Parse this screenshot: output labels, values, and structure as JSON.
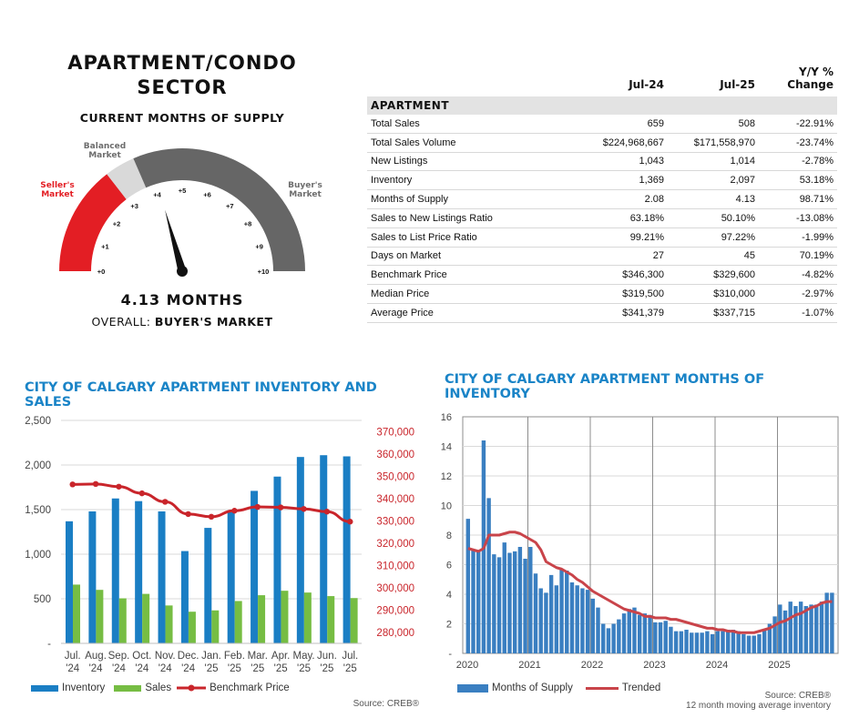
{
  "gauge": {
    "title_line1": "APARTMENT/CONDO",
    "title_line2": "SECTOR",
    "subtitle": "CURRENT MONTHS OF SUPPLY",
    "value_text": "4.13 MONTHS",
    "overall_label": "OVERALL:",
    "overall_value": "BUYER'S MARKET",
    "value": 4.13,
    "sellers_label": "Seller's Market",
    "balanced_label": "Balanced Market",
    "buyers_label": "Buyer's Market",
    "ticks": [
      "+0",
      "+1",
      "+2",
      "+3",
      "+4",
      "+5",
      "+6",
      "+7",
      "+8",
      "+9",
      "+10"
    ],
    "colors": {
      "sellers": "#e31e24",
      "balanced": "#d9d9d9",
      "buyers": "#666666",
      "sellers_text": "#e31e24",
      "label_text": "#6d6d6d"
    }
  },
  "table": {
    "col_jul24": "Jul-24",
    "col_jul25": "Jul-25",
    "col_change_line1": "Y/Y %",
    "col_change_line2": "Change",
    "section": "APARTMENT",
    "rows": [
      {
        "label": "Total Sales",
        "jul24": "659",
        "jul25": "508",
        "change": "-22.91%"
      },
      {
        "label": "Total Sales Volume",
        "jul24": "$224,968,667",
        "jul25": "$171,558,970",
        "change": "-23.74%"
      },
      {
        "label": "New Listings",
        "jul24": "1,043",
        "jul25": "1,014",
        "change": "-2.78%"
      },
      {
        "label": "Inventory",
        "jul24": "1,369",
        "jul25": "2,097",
        "change": "53.18%"
      },
      {
        "label": "Months of Supply",
        "jul24": "2.08",
        "jul25": "4.13",
        "change": "98.71%"
      },
      {
        "label": "Sales to New Listings Ratio",
        "jul24": "63.18%",
        "jul25": "50.10%",
        "change": "-13.08%"
      },
      {
        "label": "Sales to List Price Ratio",
        "jul24": "99.21%",
        "jul25": "97.22%",
        "change": "-1.99%"
      },
      {
        "label": "Days on Market",
        "jul24": "27",
        "jul25": "45",
        "change": "70.19%"
      },
      {
        "label": "Benchmark Price",
        "jul24": "$346,300",
        "jul25": "$329,600",
        "change": "-4.82%"
      },
      {
        "label": "Median Price",
        "jul24": "$319,500",
        "jul25": "$310,000",
        "change": "-2.97%"
      },
      {
        "label": "Average Price",
        "jul24": "$341,379",
        "jul25": "$337,715",
        "change": "-1.07%"
      }
    ]
  },
  "chart_data": [
    {
      "type": "bar",
      "title": "CITY OF CALGARY APARTMENT INVENTORY AND SALES",
      "categories": [
        "Jul.\n'24",
        "Aug.\n'24",
        "Sep.\n'24",
        "Oct.\n'24",
        "Nov.\n'24",
        "Dec.\n'24",
        "Jan.\n'25",
        "Feb.\n'25",
        "Mar.\n'25",
        "Apr.\n'25",
        "May.\n'25",
        "Jun.\n'25",
        "Jul.\n'25"
      ],
      "series": [
        {
          "name": "Inventory",
          "axis": "left",
          "color": "#1a7ec4",
          "values": [
            1369,
            1480,
            1625,
            1595,
            1480,
            1035,
            1295,
            1470,
            1710,
            1870,
            2090,
            2110,
            2097
          ]
        },
        {
          "name": "Sales",
          "axis": "left",
          "color": "#76bd43",
          "values": [
            659,
            600,
            505,
            555,
            425,
            355,
            370,
            475,
            540,
            590,
            570,
            530,
            508
          ]
        },
        {
          "name": "Benchmark Price",
          "axis": "right",
          "type": "line",
          "color": "#c9252b",
          "values": [
            346300,
            346500,
            345300,
            342300,
            338500,
            333000,
            331800,
            334500,
            336200,
            336000,
            335300,
            334100,
            329600
          ]
        }
      ],
      "y_left": {
        "min": 0,
        "max": 2500,
        "ticks": [
          "-",
          "500",
          "1,000",
          "1,500",
          "2,000",
          "2,500"
        ]
      },
      "y_right": {
        "min": 275000,
        "max": 375000,
        "ticks": [
          "280,000",
          "290,000",
          "300,000",
          "310,000",
          "320,000",
          "330,000",
          "340,000",
          "350,000",
          "360,000",
          "370,000"
        ]
      },
      "source": "Source: CREB®"
    },
    {
      "type": "bar",
      "title": "CITY OF CALGARY APARTMENT MONTHS OF INVENTORY",
      "x_ticks": [
        "2020",
        "2021",
        "2022",
        "2023",
        "2024",
        "2025"
      ],
      "y_ticks": [
        "-",
        "2",
        "4",
        "6",
        "8",
        "10",
        "12",
        "14",
        "16"
      ],
      "ylim": [
        0,
        16
      ],
      "series": [
        {
          "name": "Months of Supply",
          "color": "#3a7fc1",
          "values": [
            9.1,
            7.0,
            6.9,
            14.4,
            10.5,
            6.7,
            6.5,
            7.5,
            6.8,
            6.9,
            7.2,
            6.4,
            7.2,
            5.4,
            4.4,
            4.1,
            5.3,
            4.6,
            5.7,
            5.6,
            4.8,
            4.6,
            4.4,
            4.3,
            3.7,
            3.1,
            2.0,
            1.7,
            2.0,
            2.3,
            2.7,
            3.0,
            3.1,
            2.6,
            2.7,
            2.6,
            2.1,
            2.1,
            2.2,
            1.8,
            1.5,
            1.5,
            1.6,
            1.4,
            1.4,
            1.4,
            1.5,
            1.3,
            1.5,
            1.5,
            1.6,
            1.6,
            1.5,
            1.3,
            1.2,
            1.2,
            1.3,
            1.6,
            2.0,
            2.5,
            3.3,
            2.9,
            3.5,
            3.2,
            3.5,
            3.2,
            3.3,
            3.3,
            3.5,
            4.1,
            4.1
          ]
        },
        {
          "name": "Trended",
          "type": "line",
          "color": "#c9444a",
          "values": [
            7.1,
            7.0,
            6.9,
            7.1,
            8.0,
            8.0,
            8.0,
            8.1,
            8.2,
            8.2,
            8.1,
            7.9,
            7.7,
            7.5,
            7.0,
            6.2,
            6.0,
            5.8,
            5.7,
            5.5,
            5.3,
            5.0,
            4.8,
            4.5,
            4.2,
            4.0,
            3.8,
            3.6,
            3.4,
            3.2,
            3.0,
            2.9,
            2.8,
            2.7,
            2.5,
            2.5,
            2.4,
            2.4,
            2.4,
            2.3,
            2.3,
            2.2,
            2.1,
            2.0,
            1.9,
            1.8,
            1.7,
            1.7,
            1.6,
            1.6,
            1.5,
            1.5,
            1.4,
            1.4,
            1.4,
            1.4,
            1.5,
            1.6,
            1.7,
            1.9,
            2.1,
            2.2,
            2.4,
            2.6,
            2.7,
            2.9,
            3.1,
            3.2,
            3.4,
            3.5,
            3.5
          ]
        }
      ],
      "source_line1": "Source: CREB®",
      "source_line2": "12 month moving average inventory"
    }
  ]
}
